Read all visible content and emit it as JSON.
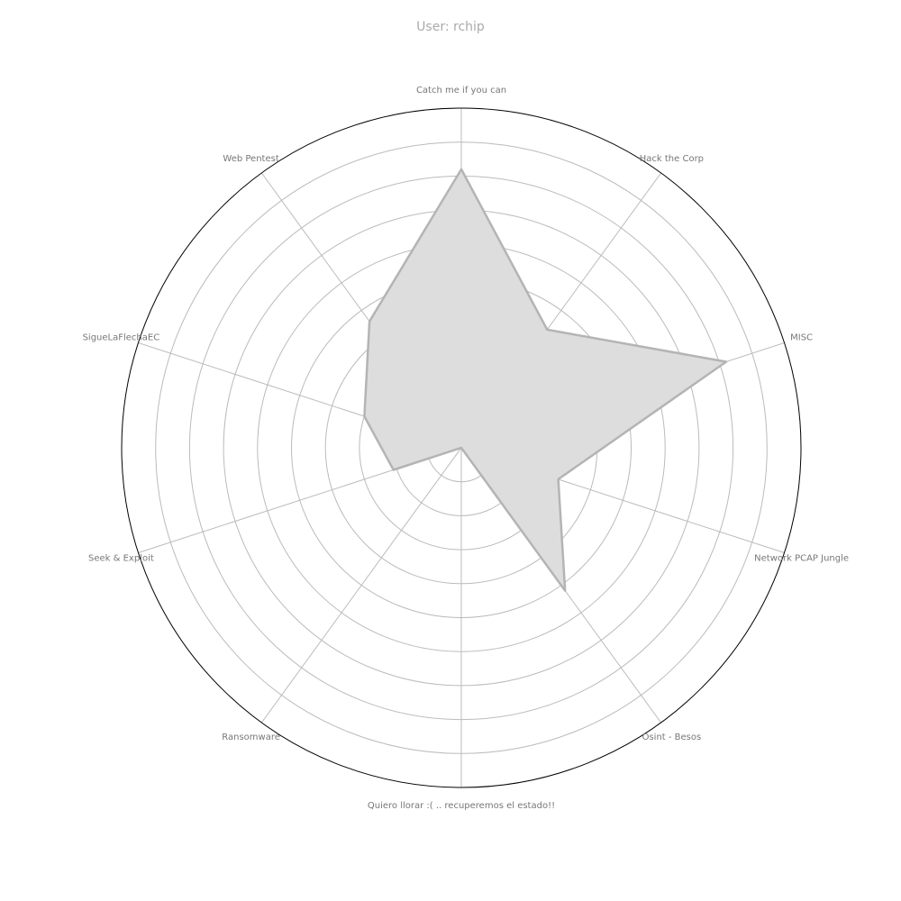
{
  "chart_data": {
    "type": "radar",
    "title": "User: rchip",
    "categories": [
      "Catch me if you can",
      "Hack the Corp",
      "MISC",
      "Network PCAP Jungle",
      "Osint - Besos",
      "Quiero llorar :( .. recuperemos el estado!!",
      "Ransomware",
      "Seek & Exploit",
      "SigueLaFlechaEC",
      "Web Pentest"
    ],
    "series": [
      {
        "values": [
          8.2,
          4.3,
          8.2,
          3.0,
          5.2,
          0.0,
          0.0,
          2.1,
          3.0,
          4.6
        ]
      }
    ],
    "rlim": [
      0,
      10
    ],
    "ring_count": 10,
    "grid": true,
    "colors": {
      "fill": "#dddddd",
      "line": "#b4b4b4",
      "grid": "#bbbbbb",
      "frame": "#000000",
      "label": "#777777"
    }
  }
}
